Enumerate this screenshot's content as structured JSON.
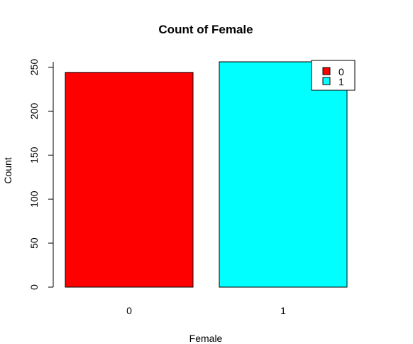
{
  "chart_data": {
    "type": "bar",
    "title": "Count of Female",
    "xlabel": "Female",
    "ylabel": "Count",
    "categories": [
      "0",
      "1"
    ],
    "values": [
      244,
      256
    ],
    "ylim": [
      0,
      256
    ],
    "yticks": [
      "0",
      "50",
      "100",
      "150",
      "200",
      "250"
    ],
    "grid": false,
    "colors": [
      "#ff0000",
      "#00ffff"
    ],
    "bar_border_color": "#000000",
    "legend": {
      "placement": "top-right",
      "entries": [
        {
          "label": "0",
          "color": "#ff0000"
        },
        {
          "label": "1",
          "color": "#00ffff"
        }
      ]
    }
  }
}
